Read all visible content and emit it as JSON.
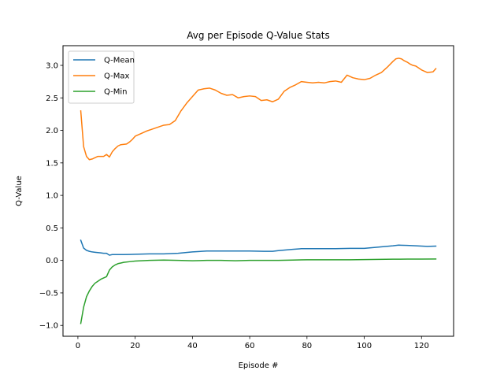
{
  "chart_data": {
    "type": "line",
    "title": "Avg per Episode Q-Value Stats",
    "xlabel": "Episode #",
    "ylabel": "Q-Value",
    "xlim": [
      -5.2,
      131.2
    ],
    "ylim": [
      -1.167,
      3.303
    ],
    "xticks": [
      0,
      20,
      40,
      60,
      80,
      100,
      120
    ],
    "yticks": [
      -1.0,
      -0.5,
      0.0,
      0.5,
      1.0,
      1.5,
      2.0,
      2.5,
      3.0
    ],
    "ytick_labels": [
      "−1.0",
      "−0.5",
      "0.0",
      "0.5",
      "1.0",
      "1.5",
      "2.0",
      "2.5",
      "3.0"
    ],
    "grid": false,
    "legend": "top-left",
    "series": [
      {
        "name": "Q-Mean",
        "color": "#1f77b4",
        "x": [
          1,
          2,
          3,
          4,
          5,
          6,
          7,
          8,
          9,
          10,
          11,
          12,
          14,
          16,
          18,
          20,
          25,
          30,
          35,
          40,
          45,
          50,
          55,
          60,
          65,
          68,
          70,
          75,
          78,
          80,
          85,
          90,
          95,
          100,
          105,
          110,
          112,
          115,
          118,
          120,
          122,
          125
        ],
        "y": [
          0.31,
          0.19,
          0.155,
          0.14,
          0.13,
          0.125,
          0.12,
          0.115,
          0.11,
          0.11,
          0.08,
          0.09,
          0.09,
          0.09,
          0.092,
          0.095,
          0.1,
          0.1,
          0.11,
          0.13,
          0.145,
          0.145,
          0.145,
          0.145,
          0.14,
          0.14,
          0.15,
          0.17,
          0.18,
          0.18,
          0.18,
          0.18,
          0.185,
          0.185,
          0.205,
          0.225,
          0.235,
          0.23,
          0.225,
          0.22,
          0.215,
          0.22
        ]
      },
      {
        "name": "Q-Max",
        "color": "#ff7f0e",
        "x": [
          1,
          2,
          3,
          4,
          5,
          6,
          7,
          8,
          9,
          10,
          11,
          12,
          13,
          14,
          15,
          17,
          18,
          19,
          20,
          22,
          24,
          26,
          28,
          30,
          32,
          34,
          36,
          38,
          40,
          42,
          44,
          46,
          48,
          50,
          52,
          54,
          56,
          58,
          60,
          62,
          64,
          66,
          68,
          70,
          72,
          74,
          76,
          78,
          80,
          82,
          84,
          86,
          88,
          90,
          92,
          94,
          96,
          98,
          100,
          102,
          104,
          106,
          108,
          110,
          111,
          112,
          113,
          114,
          115,
          116,
          117,
          118,
          120,
          122,
          124,
          125
        ],
        "y": [
          2.3,
          1.75,
          1.6,
          1.55,
          1.56,
          1.58,
          1.6,
          1.6,
          1.6,
          1.63,
          1.59,
          1.67,
          1.72,
          1.76,
          1.78,
          1.79,
          1.82,
          1.86,
          1.91,
          1.95,
          1.99,
          2.02,
          2.05,
          2.08,
          2.09,
          2.15,
          2.3,
          2.42,
          2.52,
          2.62,
          2.64,
          2.65,
          2.62,
          2.57,
          2.54,
          2.55,
          2.5,
          2.52,
          2.53,
          2.52,
          2.46,
          2.47,
          2.44,
          2.48,
          2.6,
          2.66,
          2.7,
          2.75,
          2.74,
          2.73,
          2.74,
          2.73,
          2.75,
          2.76,
          2.74,
          2.85,
          2.81,
          2.79,
          2.78,
          2.8,
          2.85,
          2.89,
          2.97,
          3.06,
          3.1,
          3.11,
          3.1,
          3.07,
          3.05,
          3.02,
          3.0,
          2.99,
          2.93,
          2.89,
          2.9,
          2.95
        ]
      },
      {
        "name": "Q-Min",
        "color": "#2ca02c",
        "x": [
          1,
          2,
          3,
          4,
          5,
          6,
          7,
          8,
          9,
          10,
          11,
          12,
          13,
          14,
          15,
          16,
          18,
          20,
          25,
          30,
          35,
          40,
          45,
          50,
          55,
          60,
          65,
          70,
          75,
          80,
          85,
          90,
          95,
          100,
          105,
          110,
          115,
          120,
          125
        ],
        "y": [
          -0.97,
          -0.72,
          -0.56,
          -0.47,
          -0.4,
          -0.35,
          -0.32,
          -0.29,
          -0.27,
          -0.25,
          -0.15,
          -0.1,
          -0.07,
          -0.05,
          -0.04,
          -0.03,
          -0.02,
          -0.01,
          0.0,
          0.005,
          0.0,
          -0.005,
          0.0,
          0.0,
          -0.005,
          0.0,
          0.0,
          0.0,
          0.005,
          0.01,
          0.01,
          0.01,
          0.01,
          0.012,
          0.015,
          0.018,
          0.02,
          0.02,
          0.022
        ]
      }
    ]
  }
}
